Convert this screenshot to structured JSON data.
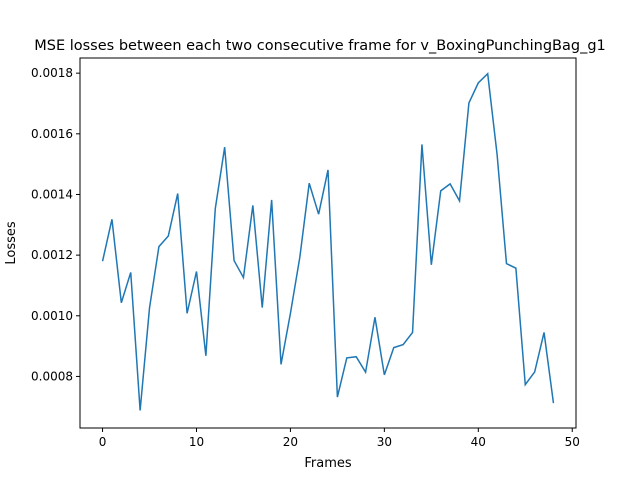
{
  "chart_data": {
    "type": "line",
    "title": "MSE losses between each two consecutive frame for v_BoxingPunchingBag_g1",
    "xlabel": "Frames",
    "ylabel": "Losses",
    "xlim": [
      -2.4,
      50.4
    ],
    "ylim": [
      0.00063,
      0.00185
    ],
    "x_ticks": [
      0,
      10,
      20,
      30,
      40,
      50
    ],
    "y_ticks": [
      0.0008,
      0.001,
      0.0012,
      0.0014,
      0.0016,
      0.0018
    ],
    "y_tick_labels": [
      "0.0008",
      "0.0010",
      "0.0012",
      "0.0014",
      "0.0016",
      "0.0018"
    ],
    "grid": false,
    "series": [
      {
        "color": "#1f77b4",
        "x": [
          0,
          1,
          2,
          3,
          4,
          5,
          6,
          7,
          8,
          9,
          10,
          11,
          12,
          13,
          14,
          15,
          16,
          17,
          18,
          19,
          20,
          21,
          22,
          23,
          24,
          25,
          26,
          27,
          28,
          29,
          30,
          31,
          32,
          33,
          34,
          35,
          36,
          37,
          38,
          39,
          40,
          41,
          42,
          43,
          44,
          45,
          46,
          47,
          48
        ],
        "values": [
          0.00118,
          0.001318,
          0.001043,
          0.001143,
          0.000688,
          0.001026,
          0.001228,
          0.001263,
          0.001403,
          0.001008,
          0.001146,
          0.000868,
          0.001353,
          0.001556,
          0.001182,
          0.001126,
          0.001364,
          0.001027,
          0.001382,
          0.00084,
          0.001008,
          0.001193,
          0.001437,
          0.001335,
          0.001481,
          0.000732,
          0.000861,
          0.000865,
          0.000814,
          0.000995,
          0.000805,
          0.000895,
          0.000905,
          0.000945,
          0.001565,
          0.001168,
          0.001412,
          0.001435,
          0.001379,
          0.001702,
          0.001768,
          0.001798,
          0.001532,
          0.001172,
          0.001157,
          0.000773,
          0.000815,
          0.000945,
          0.000712
        ]
      }
    ]
  }
}
